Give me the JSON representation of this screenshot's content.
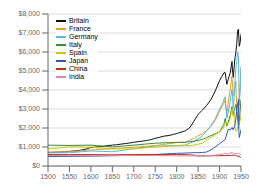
{
  "chart_data": {
    "type": "line",
    "xlim": [
      1500,
      1950
    ],
    "xticks": [
      1500,
      1550,
      1600,
      1650,
      1700,
      1750,
      1800,
      1850,
      1900,
      1950
    ],
    "ylim": [
      0,
      8000
    ],
    "yticks": [
      {
        "value": 0,
        "label": "$0"
      },
      {
        "value": 1000,
        "label": "$1,000"
      },
      {
        "value": 2000,
        "label": "$2,000"
      },
      {
        "value": 3000,
        "label": "$3,000"
      },
      {
        "value": 4000,
        "label": "$4,000"
      },
      {
        "value": 5000,
        "label": "$5,000"
      },
      {
        "value": 6000,
        "label": "$6,000"
      },
      {
        "value": 7000,
        "label": "$7,000"
      },
      {
        "value": 8000,
        "label": "$8,000"
      }
    ],
    "grid": true,
    "legend": "upper left",
    "series": [
      {
        "name": "Britain",
        "color": "#111111",
        "x": [
          1500,
          1510,
          1520,
          1530,
          1540,
          1550,
          1560,
          1570,
          1580,
          1590,
          1600,
          1610,
          1620,
          1630,
          1640,
          1650,
          1660,
          1670,
          1680,
          1690,
          1700,
          1710,
          1720,
          1730,
          1740,
          1750,
          1760,
          1770,
          1780,
          1790,
          1800,
          1810,
          1820,
          1830,
          1840,
          1850,
          1860,
          1870,
          1880,
          1890,
          1900,
          1905,
          1910,
          1913,
          1917,
          1920,
          1922,
          1925,
          1929,
          1930,
          1932,
          1934,
          1936,
          1938,
          1940,
          1942,
          1944,
          1946,
          1948,
          1950
        ],
        "values": [
          714,
          720,
          730,
          735,
          745,
          771,
          790,
          810,
          850,
          900,
          974,
          990,
          1010,
          1040,
          1070,
          1100,
          1120,
          1150,
          1180,
          1210,
          1250,
          1280,
          1310,
          1340,
          1390,
          1454,
          1510,
          1570,
          1600,
          1650,
          1706,
          1780,
          1850,
          2000,
          2350,
          2718,
          2940,
          3190,
          3500,
          3950,
          4492,
          4700,
          4900,
          4921,
          4300,
          4548,
          4700,
          4900,
          5503,
          5100,
          4666,
          5200,
          5700,
          5983,
          6400,
          7100,
          7200,
          6300,
          6500,
          6939
        ]
      },
      {
        "name": "France",
        "color": "#e8a020",
        "x": [
          1500,
          1550,
          1600,
          1650,
          1700,
          1750,
          1800,
          1820,
          1830,
          1840,
          1850,
          1860,
          1870,
          1880,
          1890,
          1900,
          1905,
          1910,
          1913,
          1917,
          1920,
          1925,
          1929,
          1932,
          1935,
          1938,
          1940,
          1942,
          1944,
          1946,
          1948,
          1950
        ],
        "values": [
          727,
          750,
          841,
          910,
          986,
          1078,
          1230,
          1250,
          1350,
          1450,
          1597,
          1700,
          1876,
          2100,
          2400,
          2876,
          3100,
          3300,
          3485,
          2700,
          3227,
          4100,
          4710,
          3700,
          4000,
          4466,
          3000,
          2700,
          2500,
          3500,
          4200,
          5186
        ]
      },
      {
        "name": "Germany",
        "color": "#5bb8d4",
        "x": [
          1500,
          1550,
          1600,
          1650,
          1700,
          1750,
          1800,
          1820,
          1830,
          1840,
          1850,
          1860,
          1870,
          1880,
          1890,
          1900,
          1905,
          1910,
          1913,
          1917,
          1920,
          1925,
          1929,
          1932,
          1934,
          1936,
          1938,
          1940,
          1942,
          1944,
          1946,
          1948,
          1950
        ],
        "values": [
          688,
          700,
          791,
          750,
          910,
          1050,
          1077,
          1100,
          1200,
          1300,
          1428,
          1600,
          1839,
          2100,
          2500,
          2985,
          3200,
          3500,
          3648,
          2500,
          2796,
          3400,
          4051,
          3100,
          3600,
          4500,
          5126,
          5500,
          6000,
          5800,
          3200,
          4000,
          5217
        ]
      },
      {
        "name": "Italy",
        "color": "#3a8a3a",
        "x": [
          1500,
          1550,
          1600,
          1650,
          1700,
          1750,
          1800,
          1820,
          1830,
          1840,
          1850,
          1860,
          1870,
          1880,
          1890,
          1900,
          1905,
          1910,
          1913,
          1917,
          1920,
          1925,
          1929,
          1932,
          1935,
          1938,
          1940,
          1942,
          1944,
          1946,
          1948,
          1950
        ],
        "values": [
          1100,
          1080,
          1100,
          1000,
          1100,
          1200,
          1244,
          1250,
          1280,
          1300,
          1350,
          1400,
          1499,
          1600,
          1700,
          1785,
          2000,
          2200,
          2507,
          2100,
          2263,
          2700,
          3135,
          2700,
          3000,
          3244,
          2900,
          2500,
          2000,
          2300,
          2900,
          3502
        ]
      },
      {
        "name": "Spain",
        "color": "#cccc00",
        "x": [
          1500,
          1550,
          1600,
          1650,
          1700,
          1750,
          1800,
          1820,
          1830,
          1840,
          1850,
          1860,
          1870,
          1880,
          1890,
          1900,
          1905,
          1910,
          1913,
          1920,
          1925,
          1929,
          1932,
          1935,
          1936,
          1939,
          1942,
          1945,
          1948,
          1950
        ],
        "values": [
          900,
          1000,
          993,
          900,
          900,
          1000,
          1063,
          1063,
          1080,
          1100,
          1144,
          1200,
          1376,
          1500,
          1650,
          1786,
          1900,
          2050,
          2255,
          2177,
          2500,
          3005,
          2600,
          2800,
          2000,
          1800,
          2000,
          2200,
          2400,
          2652
        ]
      },
      {
        "name": "Japan",
        "color": "#3355bb",
        "x": [
          1500,
          1550,
          1600,
          1650,
          1700,
          1750,
          1800,
          1820,
          1840,
          1850,
          1860,
          1870,
          1880,
          1890,
          1900,
          1905,
          1910,
          1913,
          1920,
          1925,
          1929,
          1932,
          1935,
          1938,
          1940,
          1942,
          1944,
          1945,
          1946,
          1948,
          1950
        ],
        "values": [
          500,
          510,
          520,
          540,
          570,
          600,
          669,
          680,
          700,
          700,
          710,
          737,
          850,
          1000,
          1180,
          1250,
          1350,
          1387,
          1921,
          1900,
          2026,
          1900,
          2100,
          2449,
          2900,
          3200,
          3500,
          1800,
          1500,
          1700,
          1921
        ]
      },
      {
        "name": "China",
        "color": "#bb3311",
        "x": [
          1500,
          1550,
          1600,
          1650,
          1700,
          1750,
          1800,
          1820,
          1840,
          1850,
          1860,
          1870,
          1880,
          1890,
          1900,
          1910,
          1913,
          1920,
          1929,
          1938,
          1940,
          1945,
          1950
        ],
        "values": [
          600,
          600,
          600,
          590,
          600,
          610,
          600,
          600,
          570,
          530,
          530,
          530,
          535,
          540,
          545,
          550,
          552,
          550,
          562,
          562,
          530,
          500,
          448
        ]
      },
      {
        "name": "India",
        "color": "#dd88aa",
        "x": [
          1500,
          1550,
          1600,
          1650,
          1700,
          1750,
          1800,
          1820,
          1840,
          1850,
          1860,
          1870,
          1880,
          1890,
          1900,
          1910,
          1913,
          1920,
          1929,
          1932,
          1935,
          1938,
          1940,
          1944,
          1947,
          1950
        ],
        "values": [
          550,
          550,
          550,
          550,
          550,
          550,
          533,
          533,
          533,
          533,
          533,
          533,
          555,
          575,
          599,
          640,
          673,
          620,
          726,
          640,
          660,
          668,
          660,
          670,
          620,
          619
        ]
      }
    ]
  }
}
